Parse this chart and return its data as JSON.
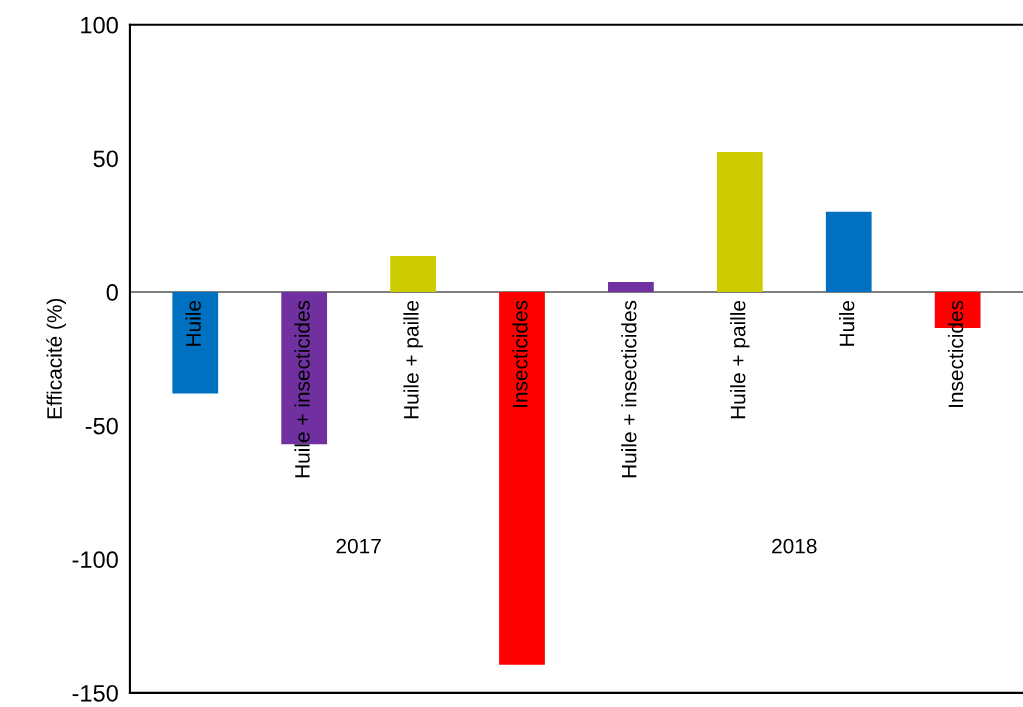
{
  "chart_data": {
    "type": "bar",
    "ylabel": "Efficacité (%)",
    "categories": [
      "Huile",
      "Huile + insecticides",
      "Huile + paille",
      "Insecticides",
      "Huile + insecticides",
      "Huile + paille",
      "Huile",
      "Insecticides"
    ],
    "values": [
      -38,
      -57,
      13.5,
      -139.5,
      3.7,
      52.4,
      30,
      -13.5
    ],
    "colors": [
      "#0070c0",
      "#7030a0",
      "#cccc00",
      "#ff0000",
      "#7030a0",
      "#cccc00",
      "#0070c0",
      "#ff0000"
    ],
    "ylim": [
      -150,
      100
    ],
    "yticks": [
      -150,
      -100,
      -50,
      0,
      50,
      100
    ],
    "annotations": [
      "2017",
      "2018"
    ],
    "grid": false,
    "legend": false
  }
}
